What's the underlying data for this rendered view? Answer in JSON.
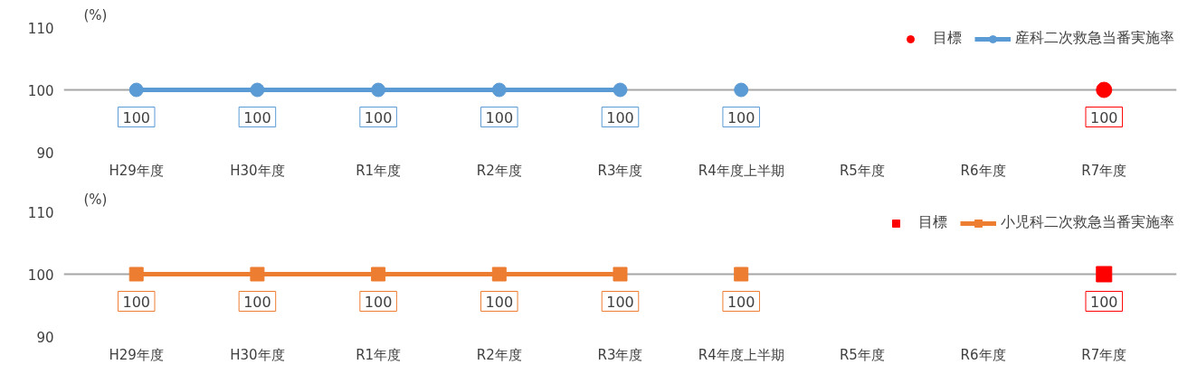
{
  "chart_data": [
    {
      "type": "line",
      "ylabel": "(%)",
      "categories": [
        "H29年度",
        "H30年度",
        "R1年度",
        "R2年度",
        "R3年度",
        "R4年度上半期",
        "R5年度",
        "R6年度",
        "R7年度"
      ],
      "ylim": [
        90,
        110
      ],
      "yticks": [
        90,
        100,
        110
      ],
      "grid": "y",
      "legend": "top right",
      "marker": "circle",
      "data_labels": true,
      "series": [
        {
          "name": "目標",
          "type": "scatter",
          "color": "#ff0000",
          "values": [
            null,
            null,
            null,
            null,
            null,
            null,
            null,
            null,
            100
          ]
        },
        {
          "name": "産科二次救急当番実施率",
          "color": "#5b9bd5",
          "values": [
            100,
            100,
            100,
            100,
            100,
            null,
            null,
            null,
            null
          ]
        },
        {
          "type": "scatter",
          "color": "#5b9bd5",
          "values": [
            null,
            null,
            null,
            null,
            null,
            100,
            null,
            null,
            null
          ]
        }
      ]
    },
    {
      "type": "line",
      "ylabel": "(%)",
      "categories": [
        "H29年度",
        "H30年度",
        "R1年度",
        "R2年度",
        "R3年度",
        "R4年度上半期",
        "R5年度",
        "R6年度",
        "R7年度"
      ],
      "ylim": [
        90,
        110
      ],
      "yticks": [
        90,
        100,
        110
      ],
      "grid": "y",
      "legend": "top right",
      "marker": "square",
      "data_labels": true,
      "series": [
        {
          "name": "目標",
          "type": "scatter",
          "color": "#ff0000",
          "values": [
            null,
            null,
            null,
            null,
            null,
            null,
            null,
            null,
            100
          ]
        },
        {
          "name": "小児科二次救急当番実施率",
          "color": "#ed7d31",
          "values": [
            100,
            100,
            100,
            100,
            100,
            null,
            null,
            null,
            null
          ]
        },
        {
          "type": "scatter",
          "color": "#ed7d31",
          "values": [
            null,
            null,
            null,
            null,
            null,
            100,
            null,
            null,
            null
          ]
        }
      ]
    }
  ]
}
